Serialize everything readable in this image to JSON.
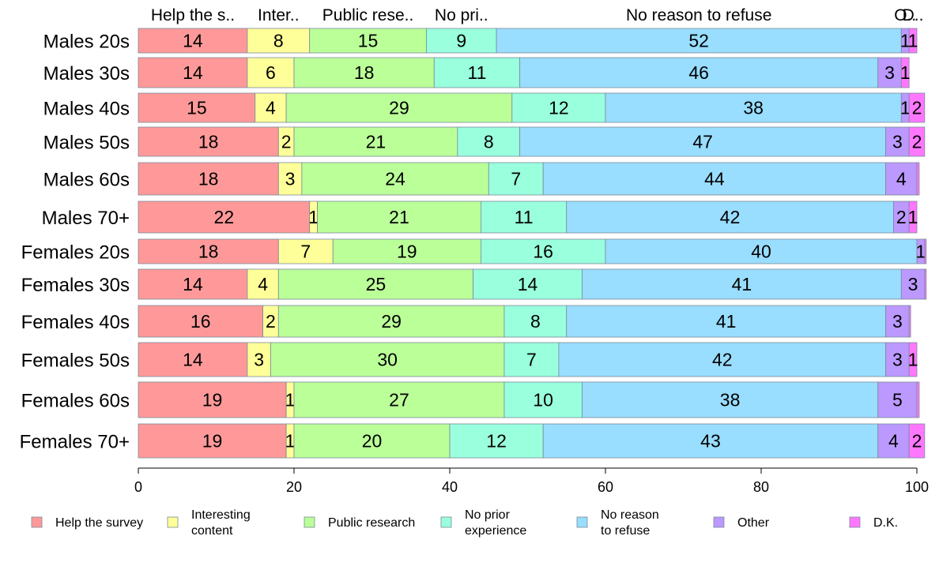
{
  "chart_data": {
    "type": "bar",
    "orientation": "horizontal",
    "stacked": true,
    "categories": [
      "Males 20s",
      "Males 30s",
      "Males 40s",
      "Males 50s",
      "Males 60s",
      "Males 70+",
      "Females 20s",
      "Females 30s",
      "Females 40s",
      "Females 50s",
      "Females 60s",
      "Females 70+"
    ],
    "top_labels": [
      "Help the s..",
      "Inter..",
      "Public rese..",
      "No pri..",
      "No reason to refuse",
      "O..",
      "D.."
    ],
    "series": [
      {
        "name": "Help the survey",
        "color": "#ff9999",
        "values": [
          14,
          14,
          15,
          18,
          18,
          22,
          18,
          14,
          16,
          14,
          19,
          19
        ]
      },
      {
        "name": "Interesting\ncontent",
        "color": "#ffff99",
        "values": [
          8,
          6,
          4,
          2,
          3,
          1,
          7,
          4,
          2,
          3,
          1,
          1
        ]
      },
      {
        "name": "Public research",
        "color": "#bbff99",
        "values": [
          15,
          18,
          29,
          21,
          24,
          21,
          19,
          25,
          29,
          30,
          27,
          20
        ]
      },
      {
        "name": "No prior\nexperience",
        "color": "#99ffdd",
        "values": [
          9,
          11,
          12,
          8,
          7,
          11,
          16,
          14,
          8,
          7,
          10,
          12
        ]
      },
      {
        "name": "No reason\nto refuse",
        "color": "#99ddff",
        "values": [
          52,
          46,
          38,
          47,
          44,
          42,
          40,
          41,
          41,
          42,
          38,
          43
        ]
      },
      {
        "name": "Other",
        "color": "#bb99ff",
        "values": [
          1,
          3,
          1,
          3,
          4,
          2,
          1,
          3,
          3,
          3,
          5,
          4
        ]
      },
      {
        "name": "D.K.",
        "color": "#ff77ff",
        "values": [
          1,
          1,
          2,
          2,
          0.3,
          1,
          0.2,
          0.2,
          0.2,
          1,
          0.3,
          2
        ]
      }
    ],
    "value_labels": [
      [
        "14",
        "8",
        "15",
        "9",
        "52",
        "1",
        "1"
      ],
      [
        "14",
        "6",
        "18",
        "11",
        "46",
        "3",
        "1"
      ],
      [
        "15",
        "4",
        "29",
        "12",
        "38",
        "1",
        "2"
      ],
      [
        "18",
        "2",
        "21",
        "8",
        "47",
        "3",
        "2"
      ],
      [
        "18",
        "3",
        "24",
        "7",
        "44",
        "4",
        ""
      ],
      [
        "22",
        "1",
        "21",
        "11",
        "42",
        "2",
        "1"
      ],
      [
        "18",
        "7",
        "19",
        "16",
        "40",
        "1",
        ""
      ],
      [
        "14",
        "4",
        "25",
        "14",
        "41",
        "3",
        ""
      ],
      [
        "16",
        "2",
        "29",
        "8",
        "41",
        "3",
        ""
      ],
      [
        "14",
        "3",
        "30",
        "7",
        "42",
        "3",
        "1"
      ],
      [
        "19",
        "1",
        "27",
        "10",
        "38",
        "5",
        ""
      ],
      [
        "19",
        "1",
        "20",
        "12",
        "43",
        "4",
        "2"
      ]
    ],
    "xticks": [
      "0",
      "20",
      "40",
      "60",
      "80",
      "100"
    ],
    "xlim": [
      0,
      100
    ],
    "grid": false,
    "legend_position": "bottom"
  }
}
